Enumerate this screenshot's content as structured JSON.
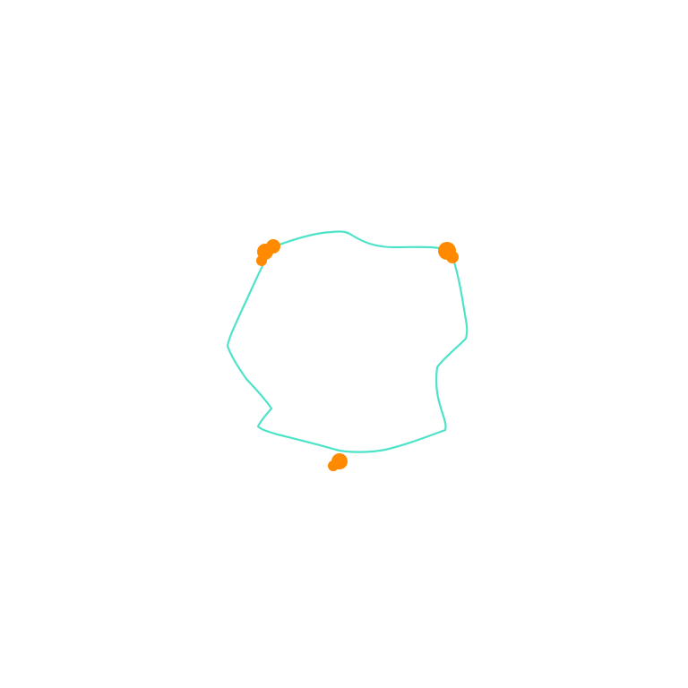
{
  "colors": {
    "background": "#ffffff",
    "outline": "#4de3c8",
    "markers": "#ff8a00"
  },
  "drawing": {
    "outline_shape": "hand-drawn-closed-loop",
    "marker_count": 3
  }
}
